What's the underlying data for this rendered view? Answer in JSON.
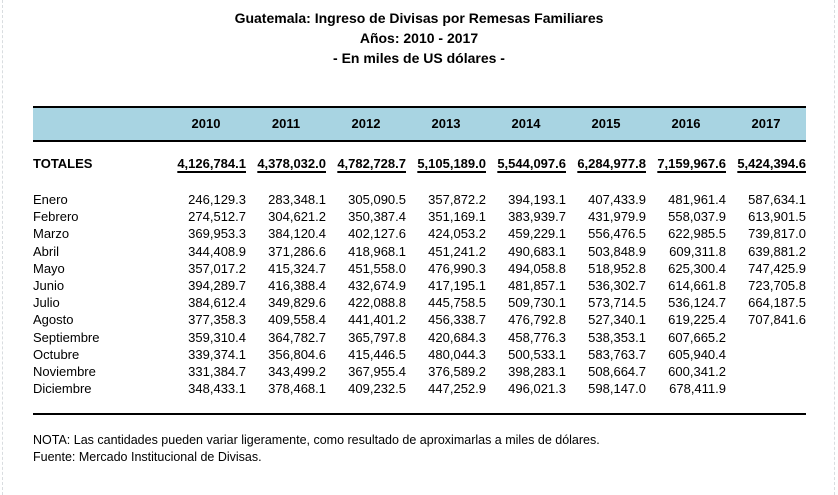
{
  "title": {
    "line1": "Guatemala: Ingreso de Divisas por Remesas Familiares",
    "line2": "Años: 2010 - 2017",
    "line3": "- En miles de US dólares -"
  },
  "table": {
    "header_bg_color": "#a8d4e2",
    "years": [
      "2010",
      "2011",
      "2012",
      "2013",
      "2014",
      "2015",
      "2016",
      "2017"
    ],
    "totals": {
      "label": "TOTALES",
      "values": [
        "4,126,784.1",
        "4,378,032.0",
        "4,782,728.7",
        "5,105,189.0",
        "5,544,097.6",
        "6,284,977.8",
        "7,159,967.6",
        "5,424,394.6"
      ]
    },
    "rows": [
      {
        "month": "Enero",
        "values": [
          "246,129.3",
          "283,348.1",
          "305,090.5",
          "357,872.2",
          "394,193.1",
          "407,433.9",
          "481,961.4",
          "587,634.1"
        ]
      },
      {
        "month": "Febrero",
        "values": [
          "274,512.7",
          "304,621.2",
          "350,387.4",
          "351,169.1",
          "383,939.7",
          "431,979.9",
          "558,037.9",
          "613,901.5"
        ]
      },
      {
        "month": "Marzo",
        "values": [
          "369,953.3",
          "384,120.4",
          "402,127.6",
          "424,053.2",
          "459,229.1",
          "556,476.5",
          "622,985.5",
          "739,817.0"
        ]
      },
      {
        "month": "Abril",
        "values": [
          "344,408.9",
          "371,286.6",
          "418,968.1",
          "451,241.2",
          "490,683.1",
          "503,848.9",
          "609,311.8",
          "639,881.2"
        ]
      },
      {
        "month": "Mayo",
        "values": [
          "357,017.2",
          "415,324.7",
          "451,558.0",
          "476,990.3",
          "494,058.8",
          "518,952.8",
          "625,300.4",
          "747,425.9"
        ]
      },
      {
        "month": "Junio",
        "values": [
          "394,289.7",
          "416,388.4",
          "432,674.9",
          "417,195.1",
          "481,857.1",
          "536,302.7",
          "614,661.8",
          "723,705.8"
        ]
      },
      {
        "month": "Julio",
        "values": [
          "384,612.4",
          "349,829.6",
          "422,088.8",
          "445,758.5",
          "509,730.1",
          "573,714.5",
          "536,124.7",
          "664,187.5"
        ]
      },
      {
        "month": "Agosto",
        "values": [
          "377,358.3",
          "409,558.4",
          "441,401.2",
          "456,338.7",
          "476,792.8",
          "527,340.1",
          "619,225.4",
          "707,841.6"
        ]
      },
      {
        "month": "Septiembre",
        "values": [
          "359,310.4",
          "364,782.7",
          "365,797.8",
          "420,684.3",
          "458,776.3",
          "538,353.1",
          "607,665.2",
          ""
        ]
      },
      {
        "month": "Octubre",
        "values": [
          "339,374.1",
          "356,804.6",
          "415,446.5",
          "480,044.3",
          "500,533.1",
          "583,763.7",
          "605,940.4",
          ""
        ]
      },
      {
        "month": "Noviembre",
        "values": [
          "331,384.7",
          "343,499.2",
          "367,955.4",
          "376,589.2",
          "398,283.1",
          "508,664.7",
          "600,341.2",
          ""
        ]
      },
      {
        "month": "Diciembre",
        "values": [
          "348,433.1",
          "378,468.1",
          "409,232.5",
          "447,252.9",
          "496,021.3",
          "598,147.0",
          "678,411.9",
          ""
        ]
      }
    ]
  },
  "notes": {
    "nota": "NOTA: Las cantidades pueden variar ligeramente, como resultado de aproximarlas a miles de dólares.",
    "fuente": "Fuente: Mercado Institucional de Divisas."
  }
}
